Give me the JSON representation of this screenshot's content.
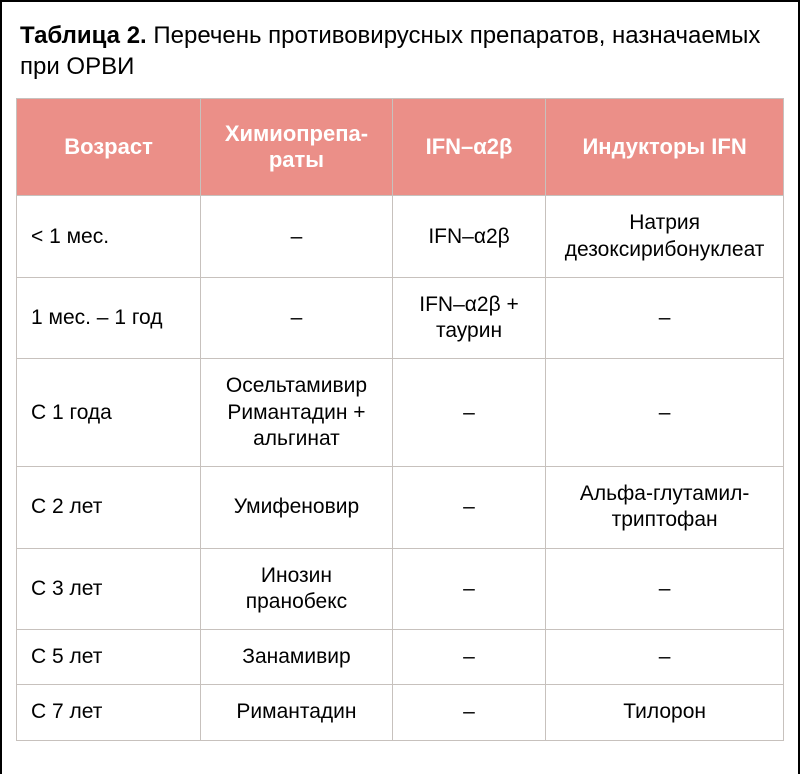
{
  "caption": {
    "label": "Таблица 2.",
    "text": "Перечень противовирусных препаратов, назначаемых при ОРВИ"
  },
  "table": {
    "header_bg": "#eb8f88",
    "header_fg": "#ffffff",
    "border_color": "#c7c1bd",
    "columns": [
      {
        "label": "Возраст"
      },
      {
        "label": "Химиопрепа­раты"
      },
      {
        "label": "IFN–α2β"
      },
      {
        "label": "Индукторы IFN"
      }
    ],
    "rows": [
      {
        "age": "< 1 мес.",
        "chemo": "–",
        "ifn": "IFN–α2β",
        "inductors": "Натрия дезоксирибонуклеат"
      },
      {
        "age": "1 мес. – 1 год",
        "chemo": "–",
        "ifn": "IFN–α2β  + таурин",
        "inductors": "–"
      },
      {
        "age": "С 1 года",
        "chemo": "Осельтамивир Римантадин + альгинат",
        "ifn": "–",
        "inductors": "–"
      },
      {
        "age": "С 2 лет",
        "chemo": "Умифеновир",
        "ifn": "–",
        "inductors": "Альфа-глутамил-триптофан"
      },
      {
        "age": "С 3 лет",
        "chemo": "Инозин пранобекс",
        "ifn": "–",
        "inductors": "–"
      },
      {
        "age": "С 5 лет",
        "chemo": "Занамивир",
        "ifn": "–",
        "inductors": "–"
      },
      {
        "age": "С 7 лет",
        "chemo": "Римантадин",
        "ifn": "–",
        "inductors": "Тилорон"
      }
    ]
  }
}
